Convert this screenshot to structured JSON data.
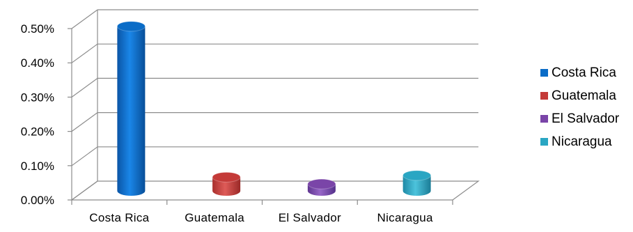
{
  "chart_data": {
    "type": "bar",
    "title": "",
    "xlabel": "",
    "ylabel": "",
    "categories": [
      "Costa Rica",
      "Guatemala",
      "El Salvador",
      "Nicaragua"
    ],
    "values": [
      0.48,
      0.04,
      0.02,
      0.045
    ],
    "ylim": [
      0,
      0.5
    ],
    "yticks": [
      "0.00%",
      "0.10%",
      "0.20%",
      "0.30%",
      "0.40%",
      "0.50%"
    ],
    "grid": true,
    "legend_position": "right",
    "colors": [
      "#0a6cc7",
      "#c43a38",
      "#7a45a8",
      "#2aa6c3"
    ],
    "series_names": [
      "Costa Rica",
      "Guatemala",
      "El Salvador",
      "Nicaragua"
    ]
  }
}
